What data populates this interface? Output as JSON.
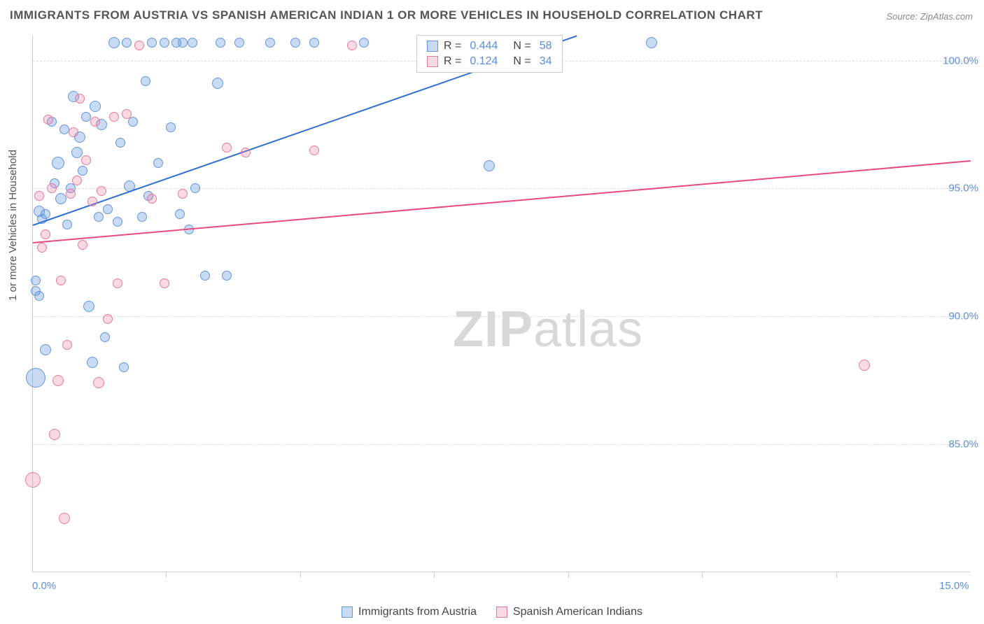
{
  "title": "IMMIGRANTS FROM AUSTRIA VS SPANISH AMERICAN INDIAN 1 OR MORE VEHICLES IN HOUSEHOLD CORRELATION CHART",
  "source": "Source: ZipAtlas.com",
  "y_axis_title": "1 or more Vehicles in Household",
  "watermark_zip": "ZIP",
  "watermark_atlas": "atlas",
  "chart": {
    "type": "scatter",
    "background_color": "#ffffff",
    "grid_color": "#dddddd",
    "axis_color": "#cccccc",
    "xlim": [
      0,
      15
    ],
    "ylim": [
      80,
      101
    ],
    "x_ticks": [
      0,
      15
    ],
    "x_tick_labels": [
      "0.0%",
      "15.0%"
    ],
    "x_minor_ticks": [
      2.14,
      4.29,
      6.43,
      8.57,
      10.71,
      12.86
    ],
    "y_ticks": [
      85,
      90,
      95,
      100
    ],
    "y_tick_labels": [
      "85.0%",
      "90.0%",
      "95.0%",
      "100.0%"
    ],
    "tick_fontsize": 15,
    "tick_color": "#5b8fd6",
    "series": [
      {
        "name": "Immigrants from Austria",
        "color_fill": "rgba(100,150,220,0.35)",
        "color_stroke": "#6496dc",
        "r_value": "0.444",
        "n_value": "58",
        "trend": {
          "x1": 0,
          "y1": 93.6,
          "x2": 8.7,
          "y2": 101,
          "color": "#2f6fd0",
          "width": 2
        },
        "points": [
          {
            "x": 0.05,
            "y": 91.4,
            "r": 7
          },
          {
            "x": 0.05,
            "y": 91.0,
            "r": 7
          },
          {
            "x": 0.1,
            "y": 90.8,
            "r": 7
          },
          {
            "x": 0.05,
            "y": 87.6,
            "r": 14
          },
          {
            "x": 0.1,
            "y": 94.1,
            "r": 8
          },
          {
            "x": 0.15,
            "y": 93.8,
            "r": 7
          },
          {
            "x": 0.2,
            "y": 94.0,
            "r": 7
          },
          {
            "x": 0.2,
            "y": 88.7,
            "r": 8
          },
          {
            "x": 0.3,
            "y": 97.6,
            "r": 7
          },
          {
            "x": 0.35,
            "y": 95.2,
            "r": 7
          },
          {
            "x": 0.4,
            "y": 96.0,
            "r": 9
          },
          {
            "x": 0.45,
            "y": 94.6,
            "r": 8
          },
          {
            "x": 0.5,
            "y": 97.3,
            "r": 7
          },
          {
            "x": 0.55,
            "y": 93.6,
            "r": 7
          },
          {
            "x": 0.6,
            "y": 95.0,
            "r": 7
          },
          {
            "x": 0.65,
            "y": 98.6,
            "r": 8
          },
          {
            "x": 0.7,
            "y": 96.4,
            "r": 8
          },
          {
            "x": 0.75,
            "y": 97.0,
            "r": 8
          },
          {
            "x": 0.8,
            "y": 95.7,
            "r": 7
          },
          {
            "x": 0.85,
            "y": 97.8,
            "r": 7
          },
          {
            "x": 0.9,
            "y": 90.4,
            "r": 8
          },
          {
            "x": 0.95,
            "y": 88.2,
            "r": 8
          },
          {
            "x": 1.0,
            "y": 98.2,
            "r": 8
          },
          {
            "x": 1.05,
            "y": 93.9,
            "r": 7
          },
          {
            "x": 1.1,
            "y": 97.5,
            "r": 8
          },
          {
            "x": 1.15,
            "y": 89.2,
            "r": 7
          },
          {
            "x": 1.2,
            "y": 94.2,
            "r": 7
          },
          {
            "x": 1.3,
            "y": 100.7,
            "r": 8
          },
          {
            "x": 1.35,
            "y": 93.7,
            "r": 7
          },
          {
            "x": 1.4,
            "y": 96.8,
            "r": 7
          },
          {
            "x": 1.45,
            "y": 88.0,
            "r": 7
          },
          {
            "x": 1.5,
            "y": 100.7,
            "r": 7
          },
          {
            "x": 1.55,
            "y": 95.1,
            "r": 8
          },
          {
            "x": 1.6,
            "y": 97.6,
            "r": 7
          },
          {
            "x": 1.75,
            "y": 93.9,
            "r": 7
          },
          {
            "x": 1.8,
            "y": 99.2,
            "r": 7
          },
          {
            "x": 1.85,
            "y": 94.7,
            "r": 7
          },
          {
            "x": 1.9,
            "y": 100.7,
            "r": 7
          },
          {
            "x": 2.0,
            "y": 96.0,
            "r": 7
          },
          {
            "x": 2.1,
            "y": 100.7,
            "r": 7
          },
          {
            "x": 2.2,
            "y": 97.4,
            "r": 7
          },
          {
            "x": 2.3,
            "y": 100.7,
            "r": 7
          },
          {
            "x": 2.35,
            "y": 94.0,
            "r": 7
          },
          {
            "x": 2.4,
            "y": 100.7,
            "r": 7
          },
          {
            "x": 2.5,
            "y": 93.4,
            "r": 7
          },
          {
            "x": 2.55,
            "y": 100.7,
            "r": 7
          },
          {
            "x": 2.6,
            "y": 95.0,
            "r": 7
          },
          {
            "x": 2.75,
            "y": 91.6,
            "r": 7
          },
          {
            "x": 2.95,
            "y": 99.1,
            "r": 8
          },
          {
            "x": 3.0,
            "y": 100.7,
            "r": 7
          },
          {
            "x": 3.1,
            "y": 91.6,
            "r": 7
          },
          {
            "x": 3.3,
            "y": 100.7,
            "r": 7
          },
          {
            "x": 3.8,
            "y": 100.7,
            "r": 7
          },
          {
            "x": 4.2,
            "y": 100.7,
            "r": 7
          },
          {
            "x": 4.5,
            "y": 100.7,
            "r": 7
          },
          {
            "x": 5.3,
            "y": 100.7,
            "r": 7
          },
          {
            "x": 7.3,
            "y": 95.9,
            "r": 8
          },
          {
            "x": 9.9,
            "y": 100.7,
            "r": 8
          }
        ]
      },
      {
        "name": "Spanish American Indians",
        "color_fill": "rgba(235,130,160,0.30)",
        "color_stroke": "#e87aa0",
        "r_value": "0.124",
        "n_value": "34",
        "trend": {
          "x1": 0,
          "y1": 92.9,
          "x2": 15,
          "y2": 96.1,
          "color": "#e84a7f",
          "width": 2
        },
        "points": [
          {
            "x": 0.0,
            "y": 83.6,
            "r": 11
          },
          {
            "x": 0.1,
            "y": 94.7,
            "r": 7
          },
          {
            "x": 0.15,
            "y": 92.7,
            "r": 7
          },
          {
            "x": 0.2,
            "y": 93.2,
            "r": 7
          },
          {
            "x": 0.25,
            "y": 97.7,
            "r": 7
          },
          {
            "x": 0.3,
            "y": 95.0,
            "r": 7
          },
          {
            "x": 0.35,
            "y": 85.4,
            "r": 8
          },
          {
            "x": 0.4,
            "y": 87.5,
            "r": 8
          },
          {
            "x": 0.45,
            "y": 91.4,
            "r": 7
          },
          {
            "x": 0.5,
            "y": 82.1,
            "r": 8
          },
          {
            "x": 0.55,
            "y": 88.9,
            "r": 7
          },
          {
            "x": 0.6,
            "y": 94.8,
            "r": 7
          },
          {
            "x": 0.65,
            "y": 97.2,
            "r": 7
          },
          {
            "x": 0.7,
            "y": 95.3,
            "r": 7
          },
          {
            "x": 0.75,
            "y": 98.5,
            "r": 7
          },
          {
            "x": 0.8,
            "y": 92.8,
            "r": 7
          },
          {
            "x": 0.85,
            "y": 96.1,
            "r": 7
          },
          {
            "x": 0.95,
            "y": 94.5,
            "r": 7
          },
          {
            "x": 1.0,
            "y": 97.6,
            "r": 7
          },
          {
            "x": 1.05,
            "y": 87.4,
            "r": 8
          },
          {
            "x": 1.1,
            "y": 94.9,
            "r": 7
          },
          {
            "x": 1.2,
            "y": 89.9,
            "r": 7
          },
          {
            "x": 1.3,
            "y": 97.8,
            "r": 7
          },
          {
            "x": 1.35,
            "y": 91.3,
            "r": 7
          },
          {
            "x": 1.5,
            "y": 97.9,
            "r": 7
          },
          {
            "x": 1.7,
            "y": 100.6,
            "r": 7
          },
          {
            "x": 1.9,
            "y": 94.6,
            "r": 7
          },
          {
            "x": 2.1,
            "y": 91.3,
            "r": 7
          },
          {
            "x": 2.4,
            "y": 94.8,
            "r": 7
          },
          {
            "x": 3.1,
            "y": 96.6,
            "r": 7
          },
          {
            "x": 3.4,
            "y": 96.4,
            "r": 7
          },
          {
            "x": 4.5,
            "y": 96.5,
            "r": 7
          },
          {
            "x": 5.1,
            "y": 100.6,
            "r": 7
          },
          {
            "x": 13.3,
            "y": 88.1,
            "r": 8
          }
        ]
      }
    ],
    "legend_box": {
      "r_label": "R =",
      "n_label": "N ="
    },
    "bottom_legend": [
      {
        "label": "Immigrants from Austria",
        "fill": "rgba(100,150,220,0.35)",
        "stroke": "#6496dc"
      },
      {
        "label": "Spanish American Indians",
        "fill": "rgba(235,130,160,0.30)",
        "stroke": "#e87aa0"
      }
    ]
  }
}
